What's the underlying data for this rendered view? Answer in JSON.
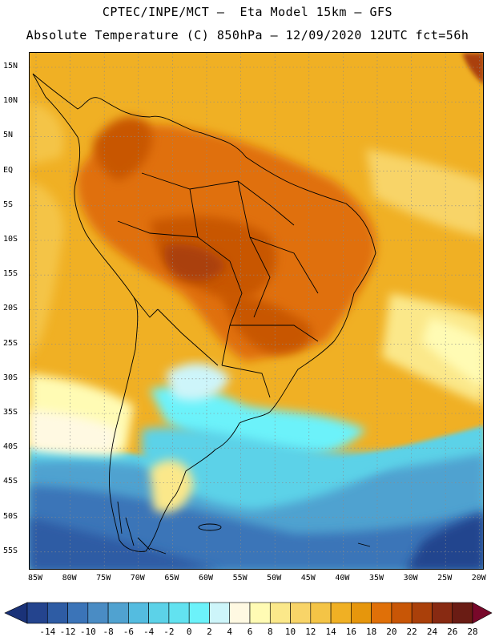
{
  "header": {
    "line1": "CPTEC/INPE/MCT –  Eta Model 15km – GFS",
    "line2": "Absolute Temperature (C) 850hPa – 12/09/2020 12UTC fct=56h"
  },
  "map": {
    "lat_labels": [
      "15N",
      "10N",
      "5N",
      "EQ",
      "5S",
      "10S",
      "15S",
      "20S",
      "25S",
      "30S",
      "35S",
      "40S",
      "45S",
      "50S",
      "55S"
    ],
    "lon_labels": [
      "85W",
      "80W",
      "75W",
      "70W",
      "65W",
      "60W",
      "55W",
      "50W",
      "45W",
      "40W",
      "35W",
      "30W",
      "25W",
      "20W"
    ],
    "grid": "dotted"
  },
  "legend": {
    "labels": [
      "-14",
      "-12",
      "-10",
      "-8",
      "-6",
      "-4",
      "-2",
      "0",
      "2",
      "4",
      "6",
      "8",
      "10",
      "12",
      "14",
      "16",
      "18",
      "20",
      "22",
      "24",
      "26",
      "28"
    ],
    "colors": [
      "#24448e",
      "#2e5ca4",
      "#3b74b8",
      "#4a8cc4",
      "#50a2d0",
      "#54bce0",
      "#5cd2e8",
      "#62e2f0",
      "#6cf2fa",
      "#cdf5fa",
      "#fff9e2",
      "#fffbb4",
      "#fbe88a",
      "#f8d468",
      "#f4c446",
      "#f0b024",
      "#e6960c",
      "#e07008",
      "#c85606",
      "#aa400a",
      "#882a12",
      "#6a1c14"
    ],
    "under_color": "#1a3278",
    "over_color": "#78082a"
  }
}
